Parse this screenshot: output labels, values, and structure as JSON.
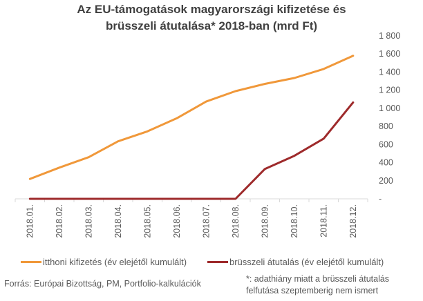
{
  "chart_data": {
    "type": "line",
    "title_lines": [
      "Az EU-támogatások magyarországi kifizetése és",
      "brüsszeli átutalása* 2018-ban (mrd Ft)"
    ],
    "categories": [
      "2018.01.",
      "2018.02.",
      "2018.03.",
      "2018.04.",
      "2018.05.",
      "2018.06.",
      "2018.07.",
      "2018.08.",
      "2018.09.",
      "2018.10.",
      "2018.11.",
      "2018.12."
    ],
    "series": [
      {
        "name": "itthoni kifizetés (év elejétől kumulált)",
        "color": "#F0983A",
        "values": [
          220,
          345,
          460,
          635,
          745,
          890,
          1075,
          1190,
          1270,
          1335,
          1435,
          1580
        ]
      },
      {
        "name": "brüsszeli átutalás (év elejétől kumulált)",
        "color": "#9E2A2B",
        "values": [
          0,
          0,
          0,
          0,
          0,
          0,
          0,
          0,
          330,
          475,
          665,
          1065
        ]
      }
    ],
    "ylim": [
      0,
      1800
    ],
    "y_ticks": [
      0,
      200,
      400,
      600,
      800,
      1000,
      1200,
      1400,
      1600,
      1800
    ],
    "y_tick_labels": [
      "-",
      "200",
      "400",
      "600",
      "800",
      "1 000",
      "1 200",
      "1 400",
      "1 600",
      "1 800"
    ],
    "y_axis_side": "right",
    "grid": false,
    "legend_position": "bottom"
  },
  "footer": {
    "source": "Forrás: Európai Bizottság, PM, Portfolio-kalkulációk",
    "note_lines": [
      "*: adathiány miatt a brüsszeli átutalás",
      "felfutása szeptemberig nem ismert"
    ]
  }
}
